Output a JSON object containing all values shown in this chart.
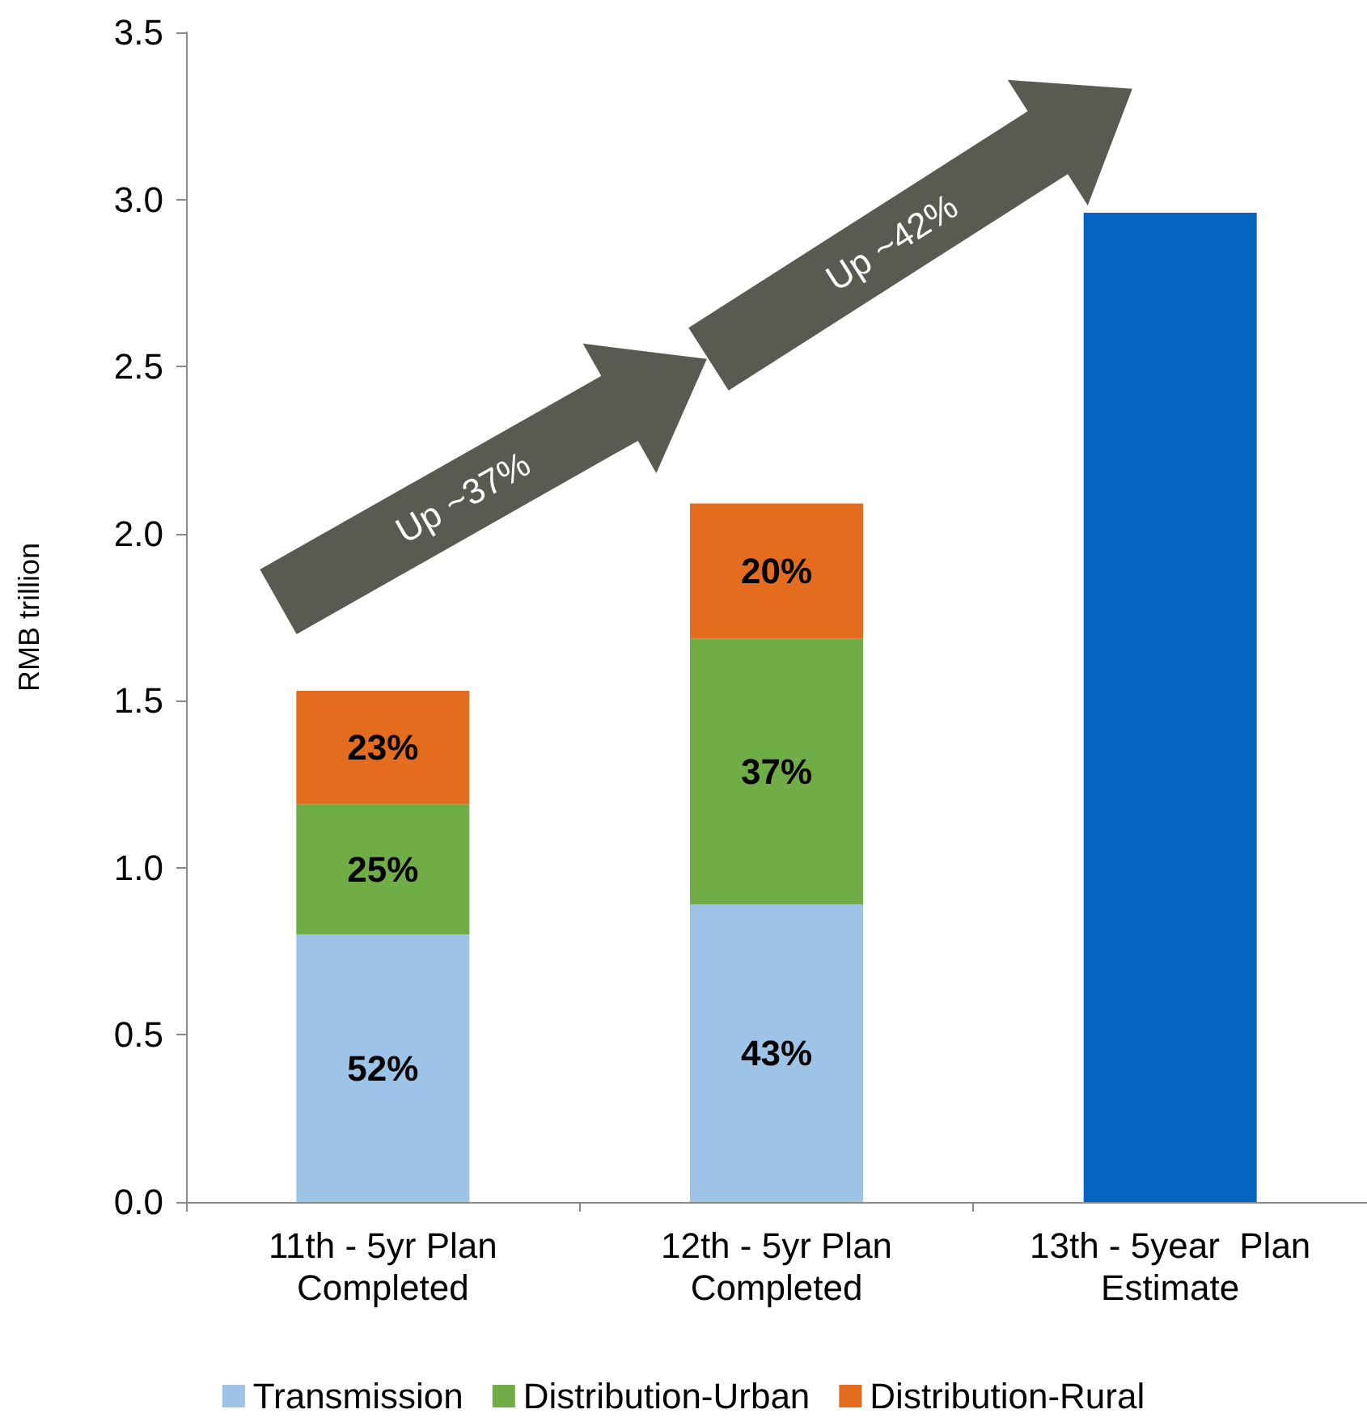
{
  "chart_data": {
    "type": "bar",
    "stacked": true,
    "ylabel": "RMB trillion",
    "categories": [
      "11th - 5yr Plan\nCompleted",
      "12th - 5yr Plan\nCompleted",
      "13th - 5year  Plan\nEstimate"
    ],
    "series": [
      {
        "name": "Transmission",
        "color": "#9dc3e6",
        "values": [
          0.8,
          0.89,
          null
        ]
      },
      {
        "name": "Distribution-Urban",
        "color": "#70ad47",
        "values": [
          0.39,
          0.795,
          null
        ]
      },
      {
        "name": "Distribution-Rural",
        "color": "#e46c1f",
        "values": [
          0.34,
          0.405,
          null
        ]
      },
      {
        "color": "#0563c1",
        "values": [
          null,
          null,
          2.96
        ]
      }
    ],
    "ylim": [
      0,
      3.5
    ],
    "yticks": [
      {
        "value": 0,
        "label": "0.0"
      },
      {
        "value": 0.5,
        "label": "0.5"
      },
      {
        "value": 1,
        "label": "1.0"
      },
      {
        "value": 1.5,
        "label": "1.5"
      },
      {
        "value": 2,
        "label": "2.0"
      },
      {
        "value": 2.5,
        "label": "2.5"
      },
      {
        "value": 3,
        "label": "3.0"
      },
      {
        "value": 3.5,
        "label": "3.5"
      }
    ],
    "grid": false,
    "legend": "bottom",
    "annotations": [
      "Up ~37%",
      "Up ~42%",
      "52%",
      "25%",
      "23%",
      "43%",
      "37%",
      "20%"
    ]
  }
}
